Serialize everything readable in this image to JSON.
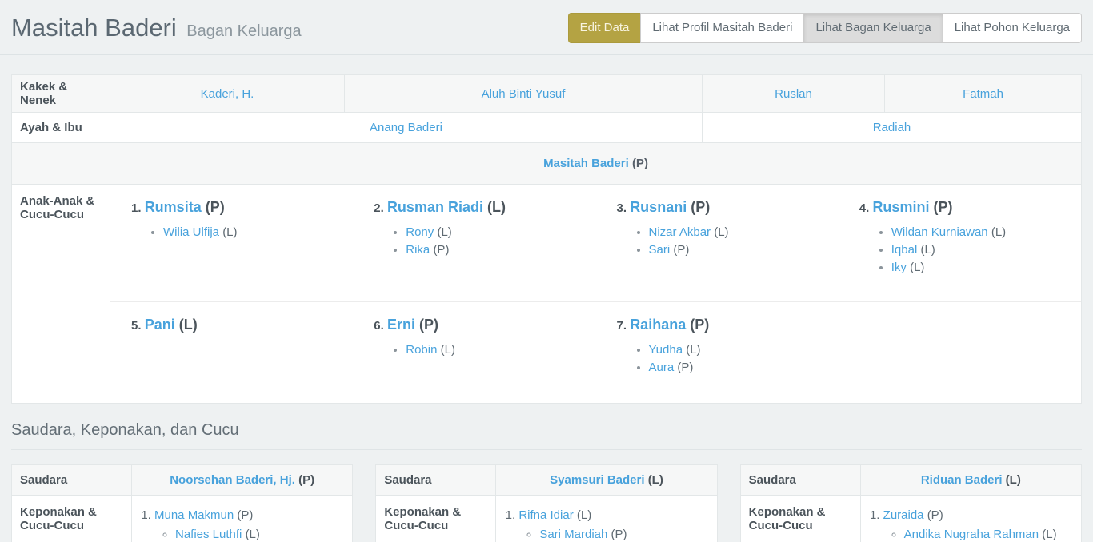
{
  "colors": {
    "link": "#48a2dc",
    "page_bg": "#eef1f2",
    "edit_button_bg": "#b4a343",
    "active_button_bg": "#dcdcdc"
  },
  "header": {
    "title": "Masitah Baderi",
    "subtitle": "Bagan Keluarga",
    "buttons": [
      {
        "id": "edit-data",
        "label": "Edit Data",
        "variant": "edit"
      },
      {
        "id": "lihat-profil",
        "label": "Lihat Profil Masitah Baderi",
        "variant": "default"
      },
      {
        "id": "lihat-bagan-keluarga",
        "label": "Lihat Bagan Keluarga",
        "variant": "active"
      },
      {
        "id": "lihat-pohon-keluarga",
        "label": "Lihat Pohon Keluarga",
        "variant": "default"
      }
    ]
  },
  "family_chart": {
    "labels": {
      "grandparents": "Kakek & Nenek",
      "parents": "Ayah & Ibu",
      "children": "Anak-Anak & Cucu-Cucu"
    },
    "grandparents": [
      "Kaderi, H.",
      "Aluh Binti Yusuf",
      "Ruslan",
      "Fatmah"
    ],
    "parents": [
      "Anang Baderi",
      "Radiah"
    ],
    "self": {
      "name": "Masitah Baderi",
      "gender": "(P)"
    },
    "children": [
      {
        "num": "1.",
        "name": "Rumsita",
        "gender": "(P)",
        "grandchildren": [
          {
            "name": "Wilia Ulfija",
            "gender": "(L)"
          }
        ]
      },
      {
        "num": "2.",
        "name": "Rusman Riadi",
        "gender": "(L)",
        "grandchildren": [
          {
            "name": "Rony",
            "gender": "(L)"
          },
          {
            "name": "Rika",
            "gender": "(P)"
          }
        ]
      },
      {
        "num": "3.",
        "name": "Rusnani",
        "gender": "(P)",
        "grandchildren": [
          {
            "name": "Nizar Akbar",
            "gender": "(L)"
          },
          {
            "name": "Sari",
            "gender": "(P)"
          }
        ]
      },
      {
        "num": "4.",
        "name": "Rusmini",
        "gender": "(P)",
        "grandchildren": [
          {
            "name": "Wildan Kurniawan",
            "gender": "(L)"
          },
          {
            "name": "Iqbal",
            "gender": "(L)"
          },
          {
            "name": "Iky",
            "gender": "(L)"
          }
        ]
      },
      {
        "num": "5.",
        "name": "Pani",
        "gender": "(L)",
        "grandchildren": []
      },
      {
        "num": "6.",
        "name": "Erni",
        "gender": "(P)",
        "grandchildren": [
          {
            "name": "Robin",
            "gender": "(L)"
          }
        ]
      },
      {
        "num": "7.",
        "name": "Raihana",
        "gender": "(P)",
        "grandchildren": [
          {
            "name": "Yudha",
            "gender": "(L)"
          },
          {
            "name": "Aura",
            "gender": "(P)"
          }
        ]
      }
    ]
  },
  "siblings_section": {
    "heading": "Saudara, Keponakan, dan Cucu",
    "row_labels": {
      "sibling": "Saudara",
      "nephews": "Keponakan & Cucu-Cucu"
    },
    "tables": [
      {
        "sibling": {
          "name": "Noorsehan Baderi, Hj.",
          "gender": "(P)"
        },
        "nephews": [
          {
            "name": "Muna Makmun",
            "gender": "(P)",
            "children": [
              {
                "name": "Nafies Luthfi",
                "gender": "(L)"
              }
            ]
          }
        ]
      },
      {
        "sibling": {
          "name": "Syamsuri Baderi",
          "gender": "(L)"
        },
        "nephews": [
          {
            "name": "Rifna Idiar",
            "gender": "(L)",
            "children": [
              {
                "name": "Sari Mardiah",
                "gender": "(P)"
              }
            ]
          }
        ]
      },
      {
        "sibling": {
          "name": "Riduan Baderi",
          "gender": "(L)"
        },
        "nephews": [
          {
            "name": "Zuraida",
            "gender": "(P)",
            "children": [
              {
                "name": "Andika Nugraha Rahman",
                "gender": "(L)"
              }
            ]
          }
        ]
      }
    ]
  }
}
